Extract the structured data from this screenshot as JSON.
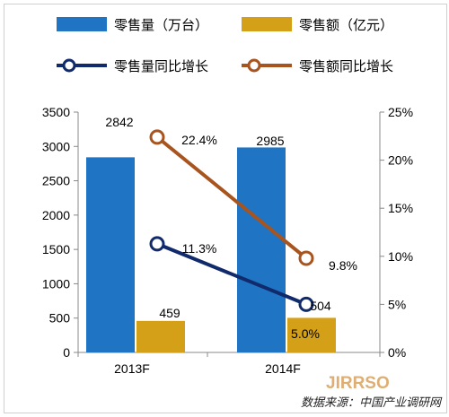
{
  "chart_data": {
    "type": "bar",
    "categories": [
      "2013F",
      "2014F"
    ],
    "series": [
      {
        "name": "零售量（万台）",
        "kind": "bar",
        "axis": "left",
        "color": "#1f74c4",
        "values": [
          2842,
          2985
        ],
        "labels": [
          "2842",
          "2985"
        ]
      },
      {
        "name": "零售额（亿元）",
        "kind": "bar",
        "axis": "left",
        "color": "#d4a017",
        "values": [
          459,
          504
        ],
        "labels": [
          "459",
          "504"
        ]
      },
      {
        "name": "零售量同比增长",
        "kind": "line",
        "axis": "right",
        "color": "#102a6b",
        "values": [
          11.3,
          5.0
        ],
        "labels": [
          "11.3%",
          "5.0%"
        ]
      },
      {
        "name": "零售额同比增长",
        "kind": "line",
        "axis": "right",
        "color": "#a8541e",
        "values": [
          22.4,
          9.8
        ],
        "labels": [
          "22.4%",
          "9.8%"
        ]
      }
    ],
    "y_left": {
      "min": 0,
      "max": 3500,
      "ticks": [
        "0",
        "500",
        "1000",
        "1500",
        "2000",
        "2500",
        "3000",
        "3500"
      ]
    },
    "y_right": {
      "min": 0,
      "max": 25,
      "ticks": [
        "0%",
        "5%",
        "10%",
        "15%",
        "20%",
        "25%"
      ]
    },
    "grid": false,
    "legend_position": "top",
    "source": "数据来源：中国产业调研网",
    "watermark": "JIRRSO"
  }
}
